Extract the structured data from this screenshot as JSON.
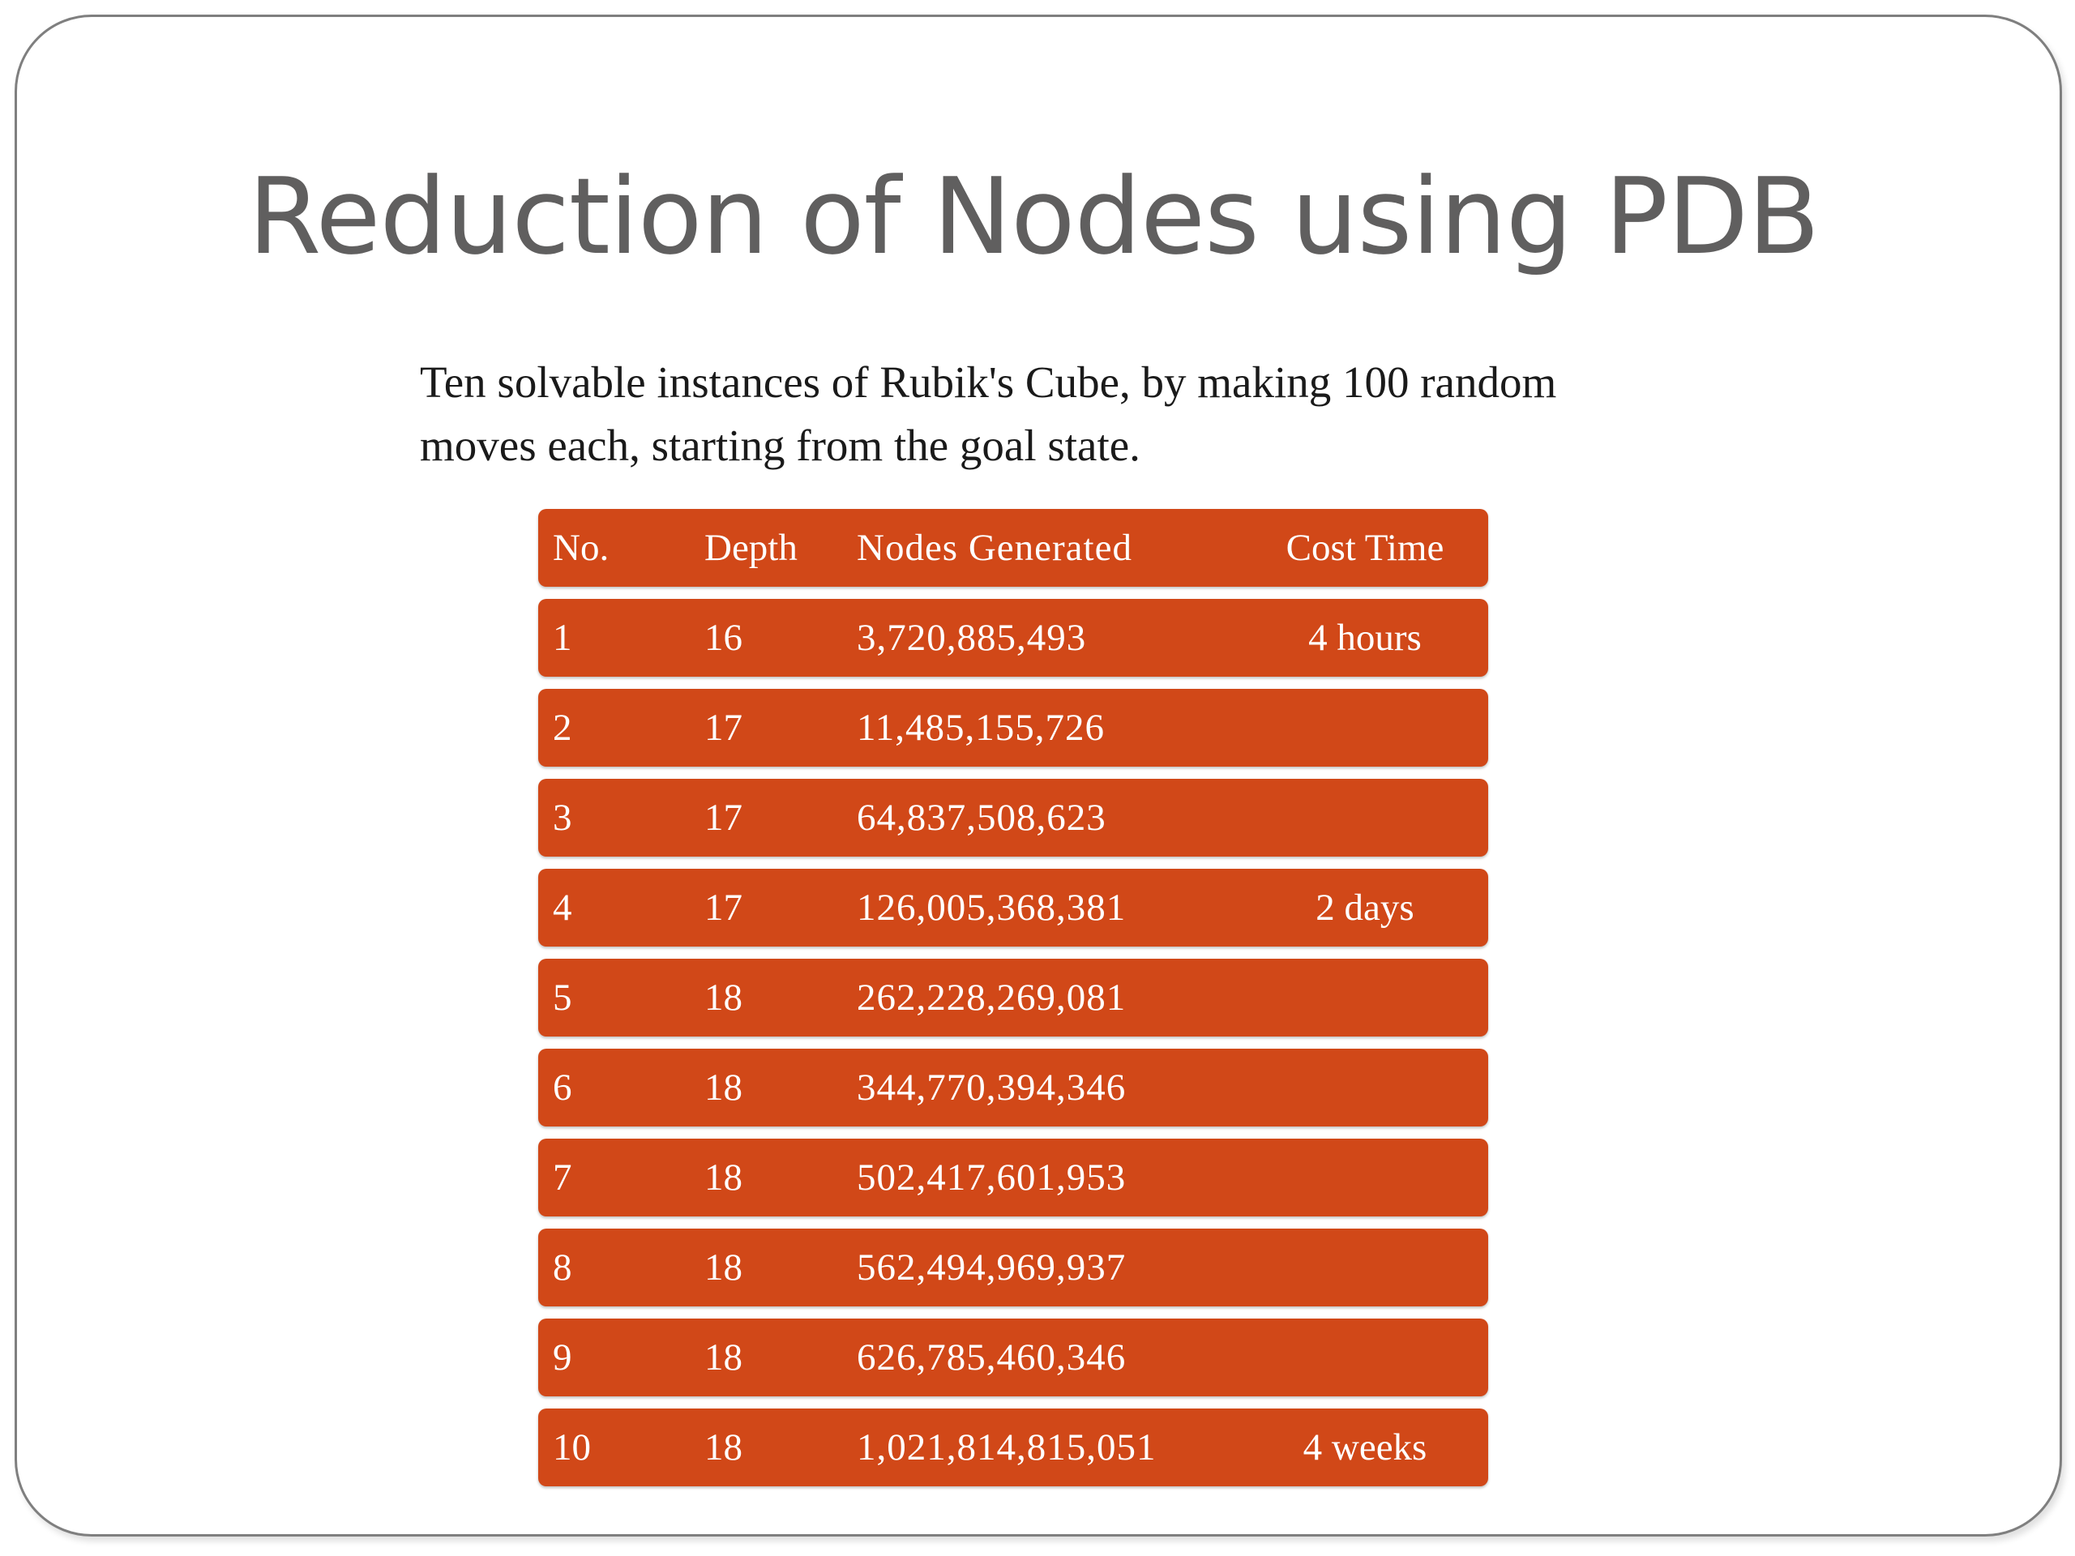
{
  "title": "Reduction of Nodes using PDB",
  "subtitle": "Ten solvable instances of Rubik's Cube, by making 100 random moves each, starting from the goal state.",
  "table": {
    "headers": [
      "No.",
      "Depth",
      "Nodes Generated",
      "Cost Time"
    ],
    "rows": [
      {
        "no": "1",
        "depth": "16",
        "nodes": "3,720,885,493",
        "time": "4 hours"
      },
      {
        "no": "2",
        "depth": "17",
        "nodes": "11,485,155,726",
        "time": ""
      },
      {
        "no": "3",
        "depth": "17",
        "nodes": "64,837,508,623",
        "time": ""
      },
      {
        "no": "4",
        "depth": "17",
        "nodes": "126,005,368,381",
        "time": "2 days"
      },
      {
        "no": "5",
        "depth": "18",
        "nodes": "262,228,269,081",
        "time": ""
      },
      {
        "no": "6",
        "depth": "18",
        "nodes": "344,770,394,346",
        "time": ""
      },
      {
        "no": "7",
        "depth": "18",
        "nodes": "502,417,601,953",
        "time": ""
      },
      {
        "no": "8",
        "depth": "18",
        "nodes": "562,494,969,937",
        "time": ""
      },
      {
        "no": "9",
        "depth": "18",
        "nodes": "626,785,460,346",
        "time": ""
      },
      {
        "no": "10",
        "depth": "18",
        "nodes": "1,021,814,815,051",
        "time": "4 weeks"
      }
    ]
  },
  "colors": {
    "row_fill": "#d14818",
    "title_text": "#605f5f",
    "border": "#7f7f7f"
  }
}
